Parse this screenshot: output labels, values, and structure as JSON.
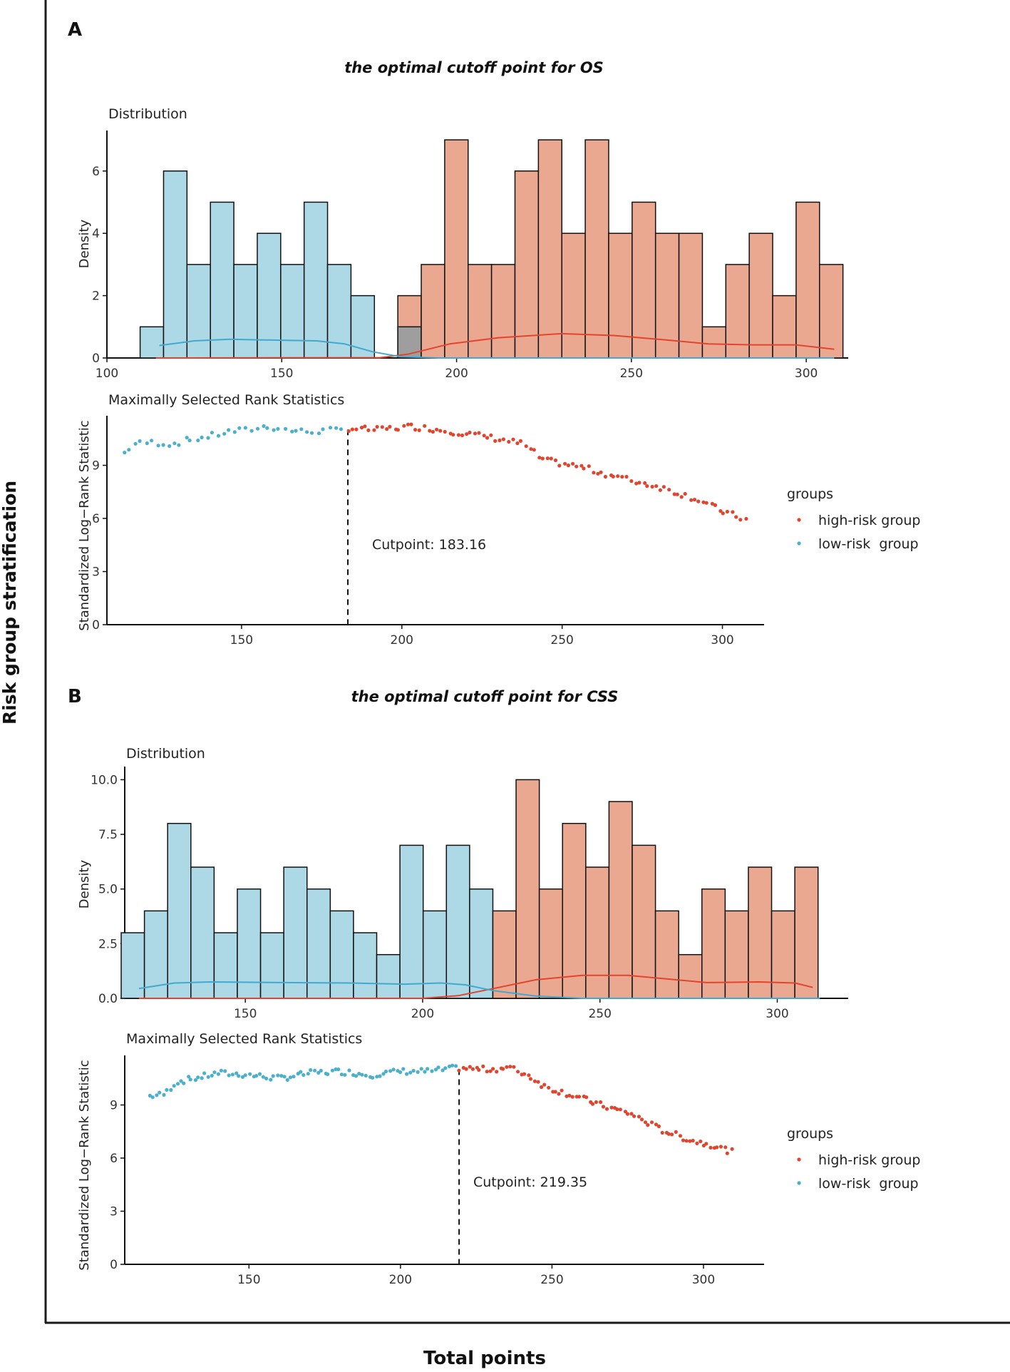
{
  "figure": {
    "ylabel": "Risk group stratification",
    "xlabel": "Total points"
  },
  "colors": {
    "low_fill": "#add8e6",
    "high_fill": "#eaa891",
    "overlap_fill": "#9e9e9e",
    "low_line": "#41a9cf",
    "high_line": "#e3442d",
    "low_point": "#4ab0cb",
    "high_point": "#e0462f"
  },
  "chart_data": [
    {
      "panel_letter": "A",
      "title": "the optimal cutoff point for OS",
      "distribution": {
        "type": "bar",
        "subtitle": "Distribution",
        "ylabel": "Density",
        "xlim": [
          100,
          312
        ],
        "ylim": [
          0,
          7.3
        ],
        "xticks": [
          100,
          150,
          200,
          250,
          300
        ],
        "yticks": [
          0,
          2,
          4,
          6
        ],
        "bin_start": 109.5,
        "bin_width": 6.7,
        "low_counts": [
          1,
          6,
          3,
          5,
          3,
          4,
          3,
          5,
          3,
          2,
          0,
          1,
          0,
          0,
          0,
          0,
          0,
          0,
          0,
          0,
          0,
          0,
          0,
          0,
          0,
          0,
          0,
          0,
          0,
          0
        ],
        "high_counts": [
          0,
          0,
          0,
          0,
          0,
          0,
          0,
          0,
          0,
          0,
          0,
          2,
          3,
          7,
          3,
          3,
          6,
          7,
          4,
          7,
          4,
          5,
          4,
          4,
          1,
          3,
          4,
          2,
          5,
          3
        ],
        "low_density_curve": [
          [
            115,
            0.4
          ],
          [
            125,
            0.55
          ],
          [
            135,
            0.6
          ],
          [
            145,
            0.58
          ],
          [
            160,
            0.55
          ],
          [
            168,
            0.45
          ],
          [
            176,
            0.2
          ],
          [
            184,
            0.04
          ],
          [
            195,
            0.0
          ],
          [
            308,
            0.0
          ]
        ],
        "high_density_curve": [
          [
            114,
            0.0
          ],
          [
            178,
            0.01
          ],
          [
            186,
            0.12
          ],
          [
            198,
            0.45
          ],
          [
            212,
            0.65
          ],
          [
            230,
            0.78
          ],
          [
            245,
            0.72
          ],
          [
            260,
            0.58
          ],
          [
            272,
            0.45
          ],
          [
            285,
            0.42
          ],
          [
            297,
            0.42
          ],
          [
            308,
            0.28
          ]
        ]
      },
      "statistics": {
        "type": "scatter",
        "subtitle": "Maximally Selected Rank Statistics",
        "ylabel": "Standardized Log−Rank Statistic",
        "xlim": [
          108,
          313
        ],
        "ylim": [
          0,
          11.8
        ],
        "xticks": [
          150,
          200,
          250,
          300
        ],
        "yticks": [
          0,
          3,
          6,
          9
        ],
        "cutpoint": 183.16,
        "cutpoint_label": "Cutpoint: 183.16",
        "low_anchors": [
          [
            113,
            9.6
          ],
          [
            116,
            10.2
          ],
          [
            122,
            10.3
          ],
          [
            128,
            10.2
          ],
          [
            133,
            10.4
          ],
          [
            139,
            10.6
          ],
          [
            146,
            10.9
          ],
          [
            152,
            11.0
          ],
          [
            158,
            11.2
          ],
          [
            164,
            11.0
          ],
          [
            170,
            10.9
          ],
          [
            182,
            11.0
          ]
        ],
        "low_n": 40,
        "high_anchors": [
          [
            183,
            11.1
          ],
          [
            192,
            11.0
          ],
          [
            203,
            11.2
          ],
          [
            212,
            11.0
          ],
          [
            220,
            10.8
          ],
          [
            230,
            10.5
          ],
          [
            238,
            10.2
          ],
          [
            244,
            9.3
          ],
          [
            256,
            8.9
          ],
          [
            268,
            8.3
          ],
          [
            280,
            7.8
          ],
          [
            292,
            7.1
          ],
          [
            300,
            6.4
          ],
          [
            308,
            5.9
          ]
        ],
        "high_n": 95,
        "legend_title": "groups",
        "legend_items": [
          "high-risk group",
          "low-risk  group"
        ]
      }
    },
    {
      "panel_letter": "B",
      "title": "the optimal cutoff point for CSS",
      "distribution": {
        "type": "bar",
        "subtitle": "Distribution",
        "ylabel": "Density",
        "xlim": [
          116,
          320
        ],
        "ylim": [
          0,
          10.6
        ],
        "xticks": [
          150,
          200,
          250,
          300
        ],
        "yticks": [
          0.0,
          2.5,
          5.0,
          7.5,
          10.0
        ],
        "y_tick_labels": [
          "0.0",
          "2.5",
          "5.0",
          "7.5",
          "10.0"
        ],
        "bin_start": 115.0,
        "bin_width": 6.55,
        "low_counts": [
          3,
          4,
          8,
          6,
          3,
          5,
          3,
          6,
          5,
          4,
          3,
          2,
          7,
          4,
          7,
          5,
          0,
          0,
          0,
          0,
          0,
          0,
          0,
          0,
          0,
          0,
          0,
          0,
          0,
          0
        ],
        "high_counts": [
          0,
          0,
          0,
          0,
          0,
          0,
          0,
          0,
          0,
          0,
          0,
          0,
          0,
          0,
          0,
          0,
          4,
          10,
          5,
          8,
          6,
          9,
          7,
          4,
          2,
          5,
          4,
          6,
          4,
          6
        ],
        "low_density_curve": [
          [
            120,
            0.45
          ],
          [
            130,
            0.7
          ],
          [
            140,
            0.75
          ],
          [
            160,
            0.72
          ],
          [
            180,
            0.7
          ],
          [
            195,
            0.65
          ],
          [
            205,
            0.7
          ],
          [
            212,
            0.62
          ],
          [
            220,
            0.35
          ],
          [
            232,
            0.1
          ],
          [
            245,
            0.0
          ],
          [
            312,
            0.0
          ]
        ],
        "high_density_curve": [
          [
            120,
            0.0
          ],
          [
            200,
            0.0
          ],
          [
            210,
            0.12
          ],
          [
            220,
            0.45
          ],
          [
            232,
            0.85
          ],
          [
            245,
            1.05
          ],
          [
            258,
            1.05
          ],
          [
            268,
            0.9
          ],
          [
            280,
            0.72
          ],
          [
            295,
            0.75
          ],
          [
            305,
            0.7
          ],
          [
            310,
            0.5
          ]
        ],
        "overlap_bin": 16
      },
      "statistics": {
        "type": "scatter",
        "subtitle": "Maximally Selected Rank Statistics",
        "ylabel": "Standardized Log−Rank Statistic",
        "xlim": [
          109,
          320
        ],
        "ylim": [
          0,
          11.8
        ],
        "xticks": [
          150,
          200,
          250,
          300
        ],
        "yticks": [
          0,
          3,
          6,
          9
        ],
        "cutpoint": 219.35,
        "cutpoint_label": "Cutpoint: 219.35",
        "low_anchors": [
          [
            117,
            9.5
          ],
          [
            122,
            9.6
          ],
          [
            126,
            10.3
          ],
          [
            132,
            10.5
          ],
          [
            140,
            10.8
          ],
          [
            150,
            10.7
          ],
          [
            160,
            10.5
          ],
          [
            170,
            10.8
          ],
          [
            180,
            10.9
          ],
          [
            190,
            10.7
          ],
          [
            200,
            10.9
          ],
          [
            210,
            10.9
          ],
          [
            219,
            11.1
          ]
        ],
        "low_n": 90,
        "high_anchors": [
          [
            219,
            11.1
          ],
          [
            228,
            11.0
          ],
          [
            236,
            11.1
          ],
          [
            242,
            10.7
          ],
          [
            248,
            10.0
          ],
          [
            256,
            9.6
          ],
          [
            266,
            9.0
          ],
          [
            276,
            8.5
          ],
          [
            286,
            7.6
          ],
          [
            296,
            7.0
          ],
          [
            304,
            6.7
          ],
          [
            310,
            6.3
          ]
        ],
        "high_n": 80,
        "legend_title": "groups",
        "legend_items": [
          "high-risk group",
          "low-risk  group"
        ]
      }
    }
  ]
}
